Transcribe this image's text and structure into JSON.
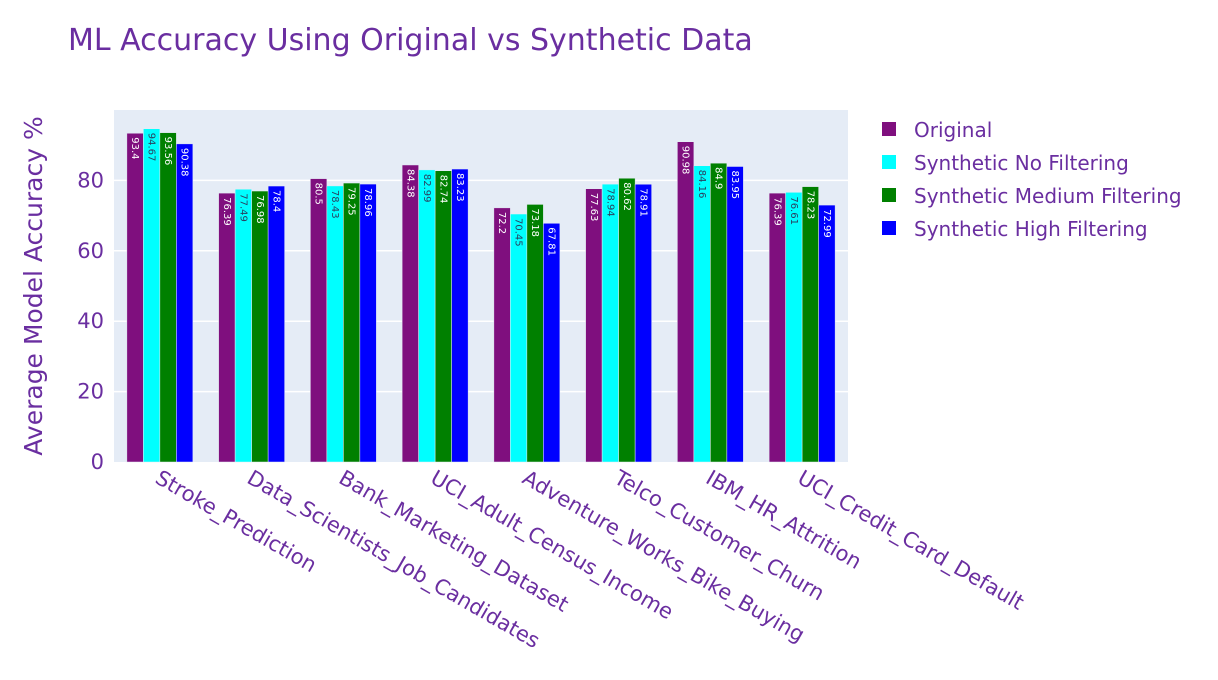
{
  "chart_data": {
    "type": "bar",
    "title": "ML Accuracy Using Original vs Synthetic Data",
    "xlabel": "",
    "ylabel": "Average Model Accuracy %",
    "ylim": [
      0,
      100
    ],
    "yticks": [
      0,
      20,
      40,
      60,
      80
    ],
    "grid": true,
    "legend_position": "top-right",
    "plot_background": "#e5ecf6",
    "text_color": "#6a2ea0",
    "categories": [
      "Stroke_Prediction",
      "Data_Scientists_Job_Candidates",
      "Bank_Marketing_Dataset",
      "UCI_Adult_Census_Income",
      "Adventure_Works_Bike_Buying",
      "Telco_Customer_Churn",
      "IBM_HR_Attrition",
      "UCI_Credit_Card_Default"
    ],
    "series": [
      {
        "name": "Original",
        "color": "#7f0f7e",
        "label_color": "#ffffff",
        "values": [
          93.4,
          76.39,
          80.5,
          84.38,
          72.2,
          77.63,
          90.98,
          76.39
        ]
      },
      {
        "name": "Synthetic No Filtering",
        "color": "#00ffff",
        "label_color": "#2a3f5f",
        "values": [
          94.67,
          77.49,
          78.43,
          82.99,
          70.45,
          78.94,
          84.16,
          76.61
        ]
      },
      {
        "name": "Synthetic Medium Filtering",
        "color": "#008000",
        "label_color": "#ffffff",
        "values": [
          93.56,
          76.98,
          79.25,
          82.74,
          73.18,
          80.62,
          84.9,
          78.23
        ]
      },
      {
        "name": "Synthetic High Filtering",
        "color": "#0000ff",
        "label_color": "#ffffff",
        "values": [
          90.38,
          78.4,
          78.96,
          83.23,
          67.81,
          78.91,
          83.95,
          72.99
        ]
      }
    ]
  }
}
